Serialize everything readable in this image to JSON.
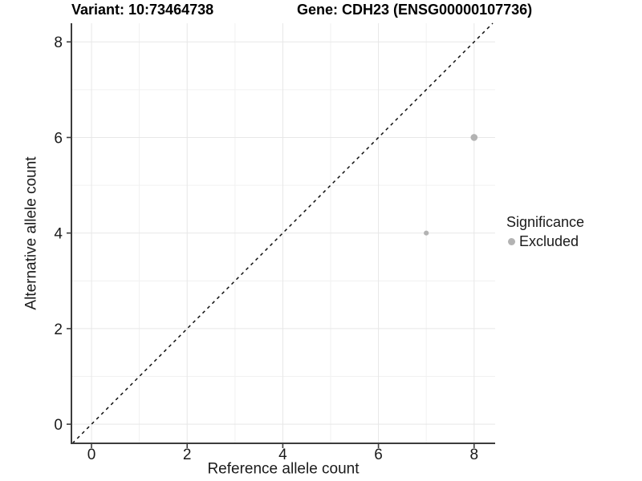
{
  "chart_data": {
    "type": "scatter",
    "title_left": "Variant: 10:73464738",
    "title_right": "Gene: CDH23 (ENSG00000107736)",
    "xlabel": "Reference allele count",
    "ylabel": "Alternative allele count",
    "xlim": [
      -0.42,
      8.44
    ],
    "ylim": [
      -0.4,
      8.39
    ],
    "x_major_ticks": [
      0,
      2,
      4,
      6,
      8
    ],
    "x_minor_ticks": [
      1,
      3,
      5,
      7
    ],
    "y_major_ticks": [
      0,
      2,
      4,
      6,
      8
    ],
    "y_minor_ticks": [
      1,
      3,
      5,
      7
    ],
    "grid": true,
    "points": [
      {
        "x": 8,
        "y": 6,
        "r": 4.3,
        "significance": "Excluded"
      },
      {
        "x": 7,
        "y": 4,
        "r": 3.1,
        "significance": "Excluded"
      }
    ],
    "reference_line": {
      "type": "identity",
      "slope": 1,
      "intercept": 0,
      "style": "dashed"
    },
    "legend": {
      "title": "Significance",
      "position": "right",
      "entries": [
        {
          "label": "Excluded",
          "color": "#b3b3b3"
        }
      ]
    },
    "colors": {
      "point": "#b3b3b3",
      "grid_major": "#e7e7e7",
      "grid_minor": "#f1f1f1",
      "axis_line": "#3c3c3c",
      "tick_label": "#1a1a1a",
      "reference_line": "#111111",
      "background": "#ffffff"
    }
  }
}
